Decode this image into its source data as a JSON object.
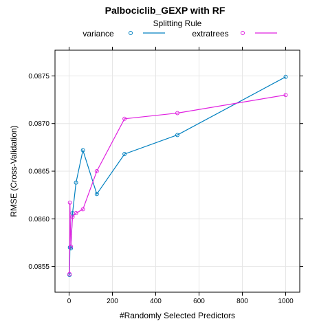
{
  "chart_data": {
    "type": "line",
    "title": "Palbociclib_GEXP with RF",
    "legend_title": "Splitting Rule",
    "legend_position": "top",
    "xlabel": "#Randomly Selected Predictors",
    "ylabel": "RMSE (Cross-Validation)",
    "xlim": [
      -65,
      1065
    ],
    "ylim": [
      0.08523,
      0.08777
    ],
    "xticks": [
      0,
      200,
      400,
      600,
      800,
      1000
    ],
    "xtick_labels": [
      "0",
      "200",
      "400",
      "600",
      "800",
      "1000"
    ],
    "yticks": [
      0.0855,
      0.086,
      0.0865,
      0.087,
      0.0875
    ],
    "ytick_labels": [
      "0.0855",
      "0.0860",
      "0.0865",
      "0.0870",
      "0.0875"
    ],
    "grid": true,
    "series": [
      {
        "name": "variance",
        "color": "#0080c0",
        "x": [
          2,
          4,
          8,
          16,
          32,
          64,
          128,
          256,
          500,
          1000
        ],
        "y": [
          0.08541,
          0.0857,
          0.08569,
          0.08606,
          0.08638,
          0.08672,
          0.08626,
          0.08668,
          0.08688,
          0.08749
        ]
      },
      {
        "name": "extratrees",
        "color": "#e020e0",
        "x": [
          2,
          4,
          8,
          16,
          32,
          64,
          128,
          256,
          500,
          1000
        ],
        "y": [
          0.08542,
          0.08617,
          0.08571,
          0.08602,
          0.08606,
          0.0861,
          0.0865,
          0.08705,
          0.08711,
          0.0873
        ]
      }
    ]
  }
}
